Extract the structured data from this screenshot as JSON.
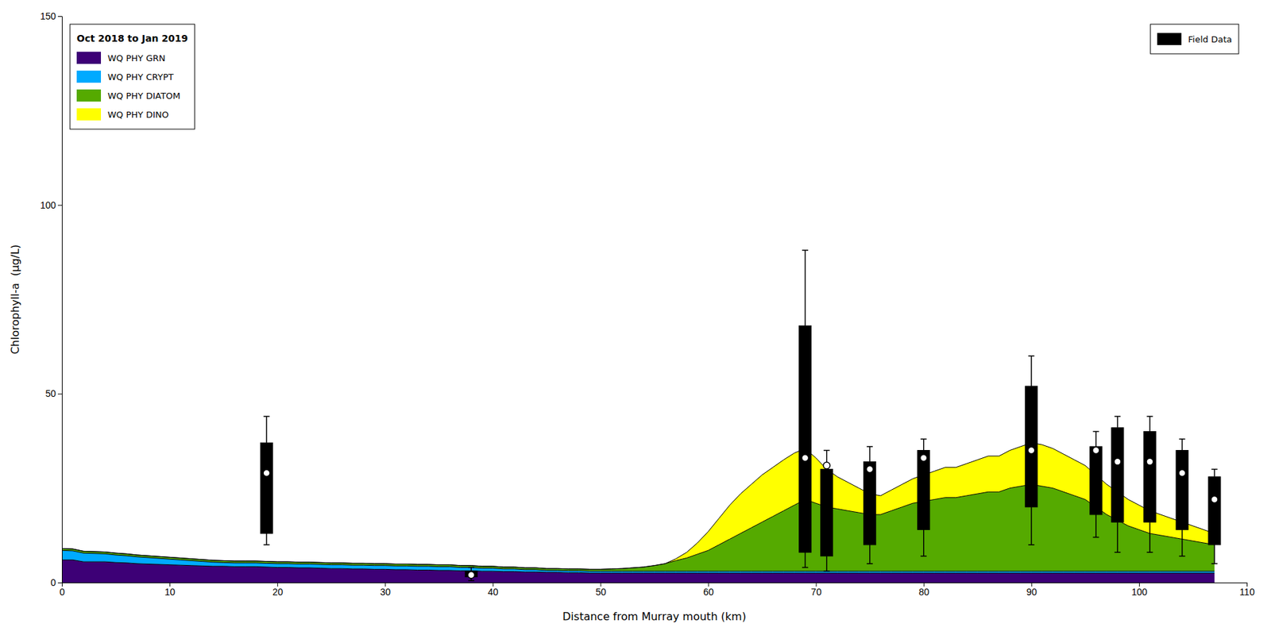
{
  "chart_data": {
    "type": "area",
    "stacked": true,
    "title": "Oct 2018 to Jan 2019",
    "xlabel": "Distance from Murray mouth (km)",
    "ylabel": "Chlorophyll-a  (μg/L)",
    "xlim": [
      0,
      110
    ],
    "ylim": [
      0,
      150
    ],
    "xticks": [
      0,
      10,
      20,
      30,
      40,
      50,
      60,
      70,
      80,
      90,
      100,
      110
    ],
    "yticks": [
      0,
      50,
      100,
      150
    ],
    "grid": false,
    "legend": "upper left",
    "x": [
      0,
      1,
      2,
      3,
      4,
      5,
      6,
      7,
      8,
      9,
      10,
      11,
      12,
      13,
      14,
      15,
      16,
      17,
      18,
      19,
      20,
      21,
      22,
      23,
      24,
      25,
      26,
      27,
      28,
      29,
      30,
      31,
      32,
      33,
      34,
      35,
      36,
      37,
      38,
      39,
      40,
      41,
      42,
      43,
      44,
      45,
      46,
      47,
      48,
      49,
      50,
      51,
      52,
      53,
      54,
      55,
      56,
      57,
      58,
      59,
      60,
      61,
      62,
      63,
      64,
      65,
      66,
      67,
      68,
      69,
      70,
      71,
      72,
      73,
      74,
      75,
      76,
      77,
      78,
      79,
      80,
      81,
      82,
      83,
      84,
      85,
      86,
      87,
      88,
      89,
      90,
      91,
      92,
      93,
      94,
      95,
      96,
      97,
      98,
      99,
      100,
      101,
      102,
      103,
      104,
      105,
      106,
      107
    ],
    "series": [
      {
        "name": "WQ PHY GRN",
        "color": "#3d0076",
        "values": [
          6.0,
          6.0,
          5.5,
          5.5,
          5.5,
          5.3,
          5.2,
          5.0,
          4.9,
          4.8,
          4.7,
          4.6,
          4.5,
          4.4,
          4.3,
          4.3,
          4.2,
          4.2,
          4.2,
          4.1,
          4.0,
          4.0,
          3.9,
          3.9,
          3.8,
          3.7,
          3.7,
          3.6,
          3.6,
          3.5,
          3.5,
          3.4,
          3.4,
          3.3,
          3.3,
          3.2,
          3.2,
          3.1,
          3.1,
          3.0,
          3.0,
          2.9,
          2.9,
          2.8,
          2.8,
          2.7,
          2.7,
          2.6,
          2.6,
          2.5,
          2.5,
          2.5,
          2.5,
          2.5,
          2.5,
          2.5,
          2.5,
          2.5,
          2.5,
          2.5,
          2.5,
          2.5,
          2.5,
          2.5,
          2.5,
          2.5,
          2.5,
          2.5,
          2.5,
          2.5,
          2.5,
          2.5,
          2.5,
          2.5,
          2.5,
          2.5,
          2.5,
          2.5,
          2.5,
          2.5,
          2.5,
          2.5,
          2.5,
          2.5,
          2.5,
          2.5,
          2.5,
          2.5,
          2.5,
          2.5,
          2.5,
          2.5,
          2.5,
          2.5,
          2.5,
          2.5,
          2.5,
          2.5,
          2.5,
          2.5,
          2.5,
          2.5,
          2.5,
          2.5,
          2.5,
          2.5,
          2.5,
          2.5
        ]
      },
      {
        "name": "WQ PHY CRYPT",
        "color": "#00aaff",
        "values": [
          2.5,
          2.4,
          2.3,
          2.2,
          2.1,
          2.0,
          1.9,
          1.8,
          1.7,
          1.6,
          1.5,
          1.4,
          1.3,
          1.2,
          1.1,
          1.0,
          1.0,
          1.0,
          1.0,
          1.0,
          1.0,
          1.0,
          1.0,
          1.0,
          1.0,
          1.0,
          1.0,
          1.0,
          1.0,
          1.0,
          1.0,
          1.0,
          1.0,
          1.0,
          1.0,
          1.0,
          1.0,
          0.9,
          0.9,
          0.8,
          0.8,
          0.7,
          0.7,
          0.6,
          0.6,
          0.5,
          0.5,
          0.5,
          0.5,
          0.5,
          0.5,
          0.5,
          0.5,
          0.5,
          0.5,
          0.5,
          0.5,
          0.5,
          0.5,
          0.5,
          0.5,
          0.5,
          0.5,
          0.5,
          0.5,
          0.5,
          0.5,
          0.5,
          0.5,
          0.5,
          0.5,
          0.5,
          0.5,
          0.5,
          0.5,
          0.5,
          0.5,
          0.5,
          0.5,
          0.5,
          0.5,
          0.5,
          0.5,
          0.5,
          0.5,
          0.5,
          0.5,
          0.5,
          0.5,
          0.5,
          0.5,
          0.5,
          0.5,
          0.5,
          0.5,
          0.5,
          0.5,
          0.5,
          0.5,
          0.5,
          0.5,
          0.5,
          0.5,
          0.5,
          0.5,
          0.5,
          0.5,
          0.5
        ]
      },
      {
        "name": "WQ PHY DIATOM",
        "color": "#55aa00",
        "values": [
          0.5,
          0.5,
          0.5,
          0.5,
          0.5,
          0.5,
          0.5,
          0.5,
          0.5,
          0.5,
          0.5,
          0.5,
          0.5,
          0.5,
          0.5,
          0.5,
          0.5,
          0.5,
          0.5,
          0.5,
          0.5,
          0.5,
          0.5,
          0.5,
          0.5,
          0.5,
          0.5,
          0.5,
          0.5,
          0.5,
          0.5,
          0.5,
          0.5,
          0.5,
          0.5,
          0.5,
          0.5,
          0.5,
          0.5,
          0.5,
          0.5,
          0.5,
          0.5,
          0.5,
          0.5,
          0.5,
          0.5,
          0.5,
          0.5,
          0.5,
          0.5,
          0.6,
          0.7,
          0.9,
          1.1,
          1.5,
          2.0,
          2.8,
          3.5,
          4.5,
          5.5,
          7.0,
          8.5,
          10.0,
          11.5,
          13.0,
          14.5,
          16.0,
          17.5,
          19.0,
          18.0,
          17.0,
          16.5,
          16.0,
          15.5,
          15.0,
          15.0,
          16.0,
          17.0,
          18.0,
          18.5,
          19.0,
          19.5,
          19.5,
          20.0,
          20.5,
          21.0,
          21.0,
          22.0,
          22.5,
          23.0,
          22.5,
          22.0,
          21.0,
          20.0,
          19.0,
          17.0,
          15.0,
          13.5,
          12.0,
          11.0,
          10.0,
          9.5,
          9.0,
          8.5,
          8.0,
          7.5,
          7.0
        ]
      },
      {
        "name": "WQ PHY DINO",
        "color": "#ffff00",
        "values": [
          0.0,
          0.0,
          0.0,
          0.0,
          0.0,
          0.0,
          0.0,
          0.0,
          0.0,
          0.0,
          0.0,
          0.0,
          0.0,
          0.0,
          0.0,
          0.0,
          0.0,
          0.0,
          0.0,
          0.0,
          0.0,
          0.0,
          0.0,
          0.0,
          0.0,
          0.0,
          0.0,
          0.0,
          0.0,
          0.0,
          0.0,
          0.0,
          0.0,
          0.0,
          0.0,
          0.0,
          0.0,
          0.0,
          0.0,
          0.0,
          0.0,
          0.0,
          0.0,
          0.0,
          0.0,
          0.0,
          0.0,
          0.0,
          0.0,
          0.0,
          0.0,
          0.0,
          0.0,
          0.0,
          0.0,
          0.0,
          0.0,
          0.5,
          1.5,
          3.0,
          5.0,
          7.0,
          9.0,
          10.5,
          11.5,
          12.5,
          13.0,
          13.5,
          13.8,
          13.5,
          12.0,
          10.0,
          8.5,
          7.5,
          6.5,
          5.5,
          5.0,
          5.5,
          6.0,
          6.5,
          7.0,
          7.5,
          8.0,
          8.0,
          8.5,
          9.0,
          9.5,
          9.5,
          10.0,
          10.5,
          11.0,
          11.0,
          10.5,
          10.0,
          9.5,
          9.0,
          8.5,
          8.0,
          7.5,
          7.0,
          6.5,
          6.0,
          5.5,
          5.0,
          4.5,
          4.0,
          3.5,
          3.0
        ]
      },
      {
        "name": "Field Data",
        "type": "box",
        "color": "#000000",
        "x": [
          19,
          38,
          69,
          71,
          75,
          80,
          90,
          96,
          98,
          101,
          104,
          107
        ],
        "median": [
          29,
          2,
          33,
          31,
          30,
          33,
          35,
          35,
          32,
          32,
          29,
          22
        ],
        "q1": [
          13,
          1.5,
          8,
          7,
          10,
          14,
          20,
          18,
          16,
          16,
          14,
          10
        ],
        "q3": [
          37,
          3,
          68,
          30,
          32,
          35,
          52,
          36,
          41,
          40,
          35,
          28
        ],
        "whisker_low": [
          10,
          0.5,
          4,
          3,
          5,
          7,
          10,
          12,
          8,
          8,
          7,
          5
        ],
        "whisker_high": [
          44,
          4,
          88,
          35,
          36,
          38,
          60,
          40,
          44,
          44,
          38,
          30
        ]
      }
    ]
  }
}
